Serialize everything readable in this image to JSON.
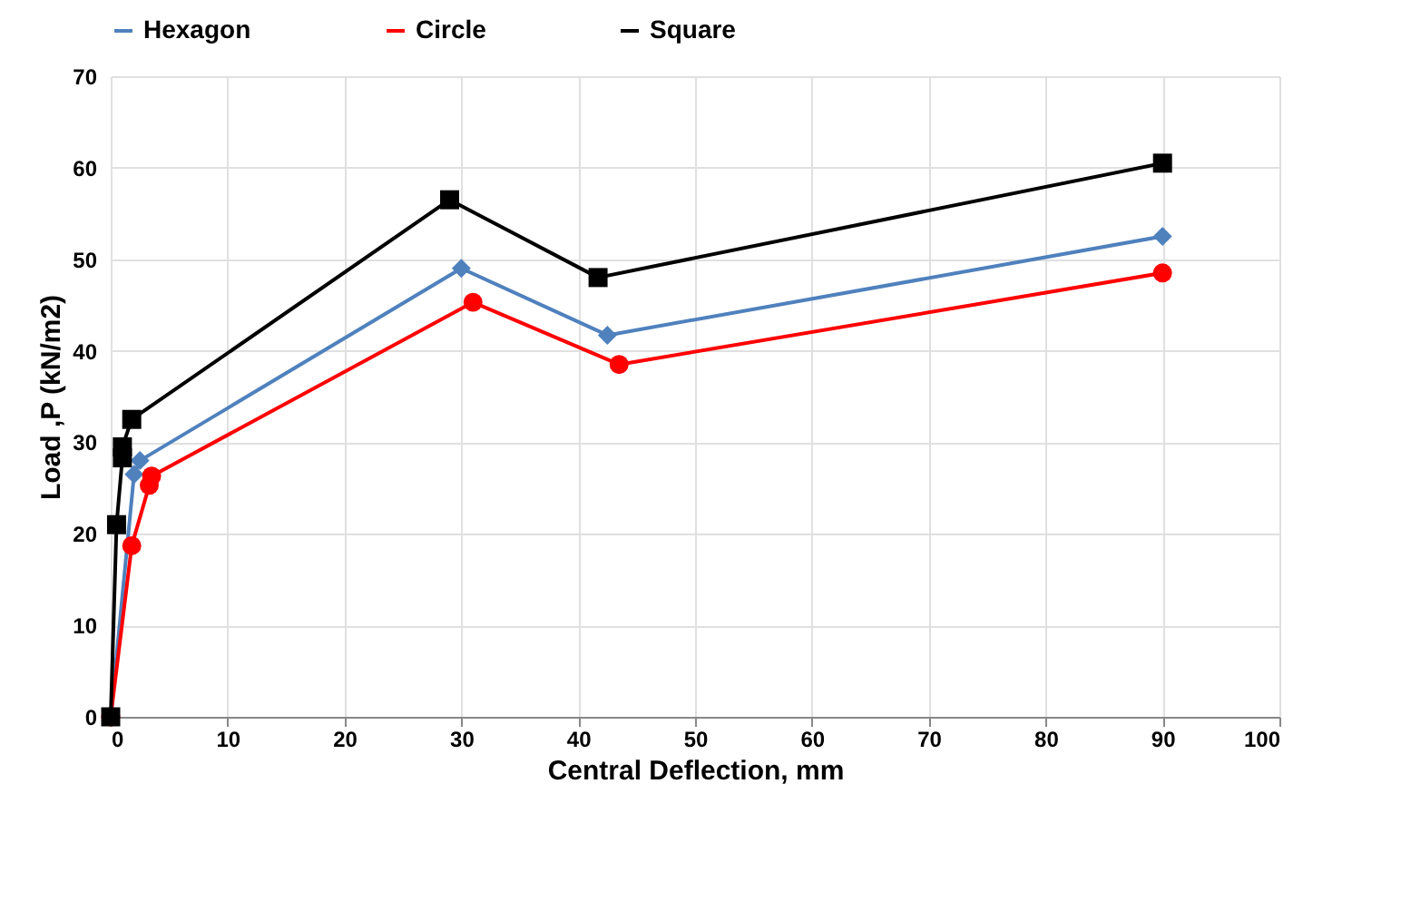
{
  "chart_data": {
    "type": "line",
    "xlabel": "Central Deflection, mm",
    "ylabel": "Load ,P (kN/m2)",
    "xlim": [
      0,
      100
    ],
    "xticks": [
      0,
      10,
      20,
      30,
      40,
      50,
      60,
      70,
      80,
      90,
      100
    ],
    "ylim": [
      0,
      70
    ],
    "yticks": [
      0,
      10,
      20,
      30,
      40,
      50,
      60,
      70
    ],
    "grid": true,
    "legend": "top",
    "line_style": "solid",
    "series": [
      {
        "name": "Hexagon",
        "color": "#4f81bd",
        "marker": "diamond",
        "x": [
          0,
          2,
          2.5,
          30,
          42.5,
          90
        ],
        "values": [
          0,
          26.5,
          28,
          49,
          41.7,
          52.5
        ]
      },
      {
        "name": "Circle",
        "color": "#ff0000",
        "marker": "circle",
        "x": [
          0,
          1.8,
          3.3,
          3.5,
          31,
          43.5,
          90
        ],
        "values": [
          0,
          18.7,
          25.3,
          26.3,
          45.3,
          38.5,
          48.5
        ]
      },
      {
        "name": "Square",
        "color": "#000000",
        "marker": "square",
        "x": [
          0,
          0.5,
          1,
          1,
          1.8,
          29,
          41.7,
          90
        ],
        "values": [
          0,
          21,
          28.3,
          29.5,
          32.5,
          56.5,
          48,
          60.5
        ]
      }
    ]
  }
}
